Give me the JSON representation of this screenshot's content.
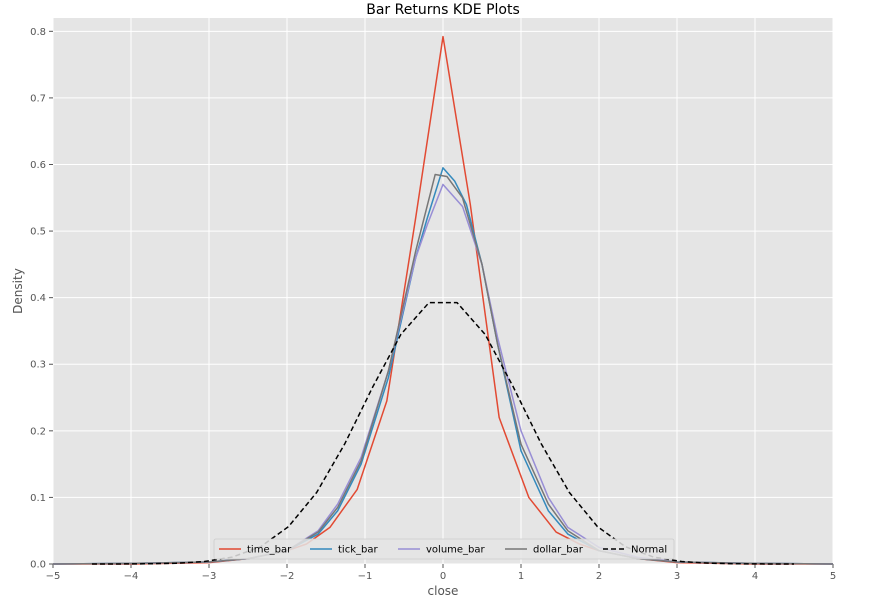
{
  "chart_data": {
    "type": "line",
    "title": "Bar Returns KDE Plots",
    "xlabel": "close",
    "ylabel": "Density",
    "xlim": [
      -5,
      5
    ],
    "ylim": [
      0,
      0.82
    ],
    "xticks": [
      -5,
      -4,
      -3,
      -2,
      -1,
      0,
      1,
      2,
      3,
      4,
      5
    ],
    "xtick_labels": [
      "−5",
      "−4",
      "−3",
      "−2",
      "−1",
      "0",
      "1",
      "2",
      "3",
      "4",
      "5"
    ],
    "yticks": [
      0.0,
      0.1,
      0.2,
      0.3,
      0.4,
      0.5,
      0.6,
      0.7,
      0.8
    ],
    "ytick_labels": [
      "0.0",
      "0.1",
      "0.2",
      "0.3",
      "0.4",
      "0.5",
      "0.6",
      "0.7",
      "0.8"
    ],
    "grid": true,
    "legend_position": "bottom-center",
    "series": [
      {
        "name": "time_bar",
        "color": "#e24a33",
        "dash": "solid",
        "points": [
          [
            -5,
            0.0
          ],
          [
            -4,
            0.0
          ],
          [
            -3,
            0.002
          ],
          [
            -2.5,
            0.008
          ],
          [
            -2,
            0.02
          ],
          [
            -1.75,
            0.03
          ],
          [
            -1.45,
            0.055
          ],
          [
            -1.1,
            0.112
          ],
          [
            -0.72,
            0.245
          ],
          [
            -0.35,
            0.52
          ],
          [
            0,
            0.792
          ],
          [
            0.35,
            0.54
          ],
          [
            0.72,
            0.22
          ],
          [
            1.1,
            0.1
          ],
          [
            1.45,
            0.048
          ],
          [
            1.75,
            0.03
          ],
          [
            2,
            0.02
          ],
          [
            2.5,
            0.008
          ],
          [
            3,
            0.002
          ],
          [
            4,
            0.0
          ],
          [
            5,
            0.0
          ]
        ]
      },
      {
        "name": "tick_bar",
        "color": "#348abd",
        "dash": "solid",
        "points": [
          [
            -5,
            0.0
          ],
          [
            -4,
            0.001
          ],
          [
            -3,
            0.003
          ],
          [
            -2.5,
            0.008
          ],
          [
            -2,
            0.02
          ],
          [
            -1.6,
            0.045
          ],
          [
            -1.35,
            0.08
          ],
          [
            -1.05,
            0.15
          ],
          [
            -0.7,
            0.28
          ],
          [
            -0.35,
            0.46
          ],
          [
            -0.2,
            0.52
          ],
          [
            0,
            0.595
          ],
          [
            0.15,
            0.575
          ],
          [
            0.3,
            0.54
          ],
          [
            0.5,
            0.45
          ],
          [
            0.7,
            0.33
          ],
          [
            1.0,
            0.17
          ],
          [
            1.35,
            0.08
          ],
          [
            1.6,
            0.045
          ],
          [
            2,
            0.02
          ],
          [
            2.5,
            0.008
          ],
          [
            3,
            0.003
          ],
          [
            4,
            0.001
          ],
          [
            5,
            0.0
          ]
        ]
      },
      {
        "name": "volume_bar",
        "color": "#988ed5",
        "dash": "solid",
        "points": [
          [
            -5,
            0.0
          ],
          [
            -4,
            0.001
          ],
          [
            -3,
            0.003
          ],
          [
            -2.5,
            0.008
          ],
          [
            -2,
            0.02
          ],
          [
            -1.6,
            0.05
          ],
          [
            -1.35,
            0.09
          ],
          [
            -1.05,
            0.16
          ],
          [
            -0.7,
            0.29
          ],
          [
            -0.35,
            0.46
          ],
          [
            -0.2,
            0.51
          ],
          [
            0,
            0.57
          ],
          [
            0.25,
            0.537
          ],
          [
            0.5,
            0.45
          ],
          [
            0.7,
            0.34
          ],
          [
            1.0,
            0.2
          ],
          [
            1.35,
            0.1
          ],
          [
            1.6,
            0.055
          ],
          [
            2,
            0.025
          ],
          [
            2.5,
            0.01
          ],
          [
            3,
            0.003
          ],
          [
            4,
            0.001
          ],
          [
            5,
            0.0
          ]
        ]
      },
      {
        "name": "dollar_bar",
        "color": "#777777",
        "dash": "solid",
        "points": [
          [
            -5,
            0.0
          ],
          [
            -4,
            0.001
          ],
          [
            -3,
            0.003
          ],
          [
            -2.5,
            0.008
          ],
          [
            -2,
            0.02
          ],
          [
            -1.6,
            0.048
          ],
          [
            -1.35,
            0.085
          ],
          [
            -1.05,
            0.155
          ],
          [
            -0.7,
            0.29
          ],
          [
            -0.35,
            0.47
          ],
          [
            -0.1,
            0.585
          ],
          [
            0.05,
            0.582
          ],
          [
            0.25,
            0.55
          ],
          [
            0.5,
            0.45
          ],
          [
            0.7,
            0.33
          ],
          [
            1.0,
            0.18
          ],
          [
            1.35,
            0.09
          ],
          [
            1.6,
            0.05
          ],
          [
            2,
            0.02
          ],
          [
            2.5,
            0.008
          ],
          [
            3,
            0.003
          ],
          [
            4,
            0.001
          ],
          [
            5,
            0.0
          ]
        ]
      },
      {
        "name": "Normal",
        "color": "#000000",
        "dash": "dashed",
        "function": "normal_pdf",
        "mean": 0,
        "std": 1,
        "x_range": [
          -4.5,
          4.5
        ]
      }
    ]
  }
}
